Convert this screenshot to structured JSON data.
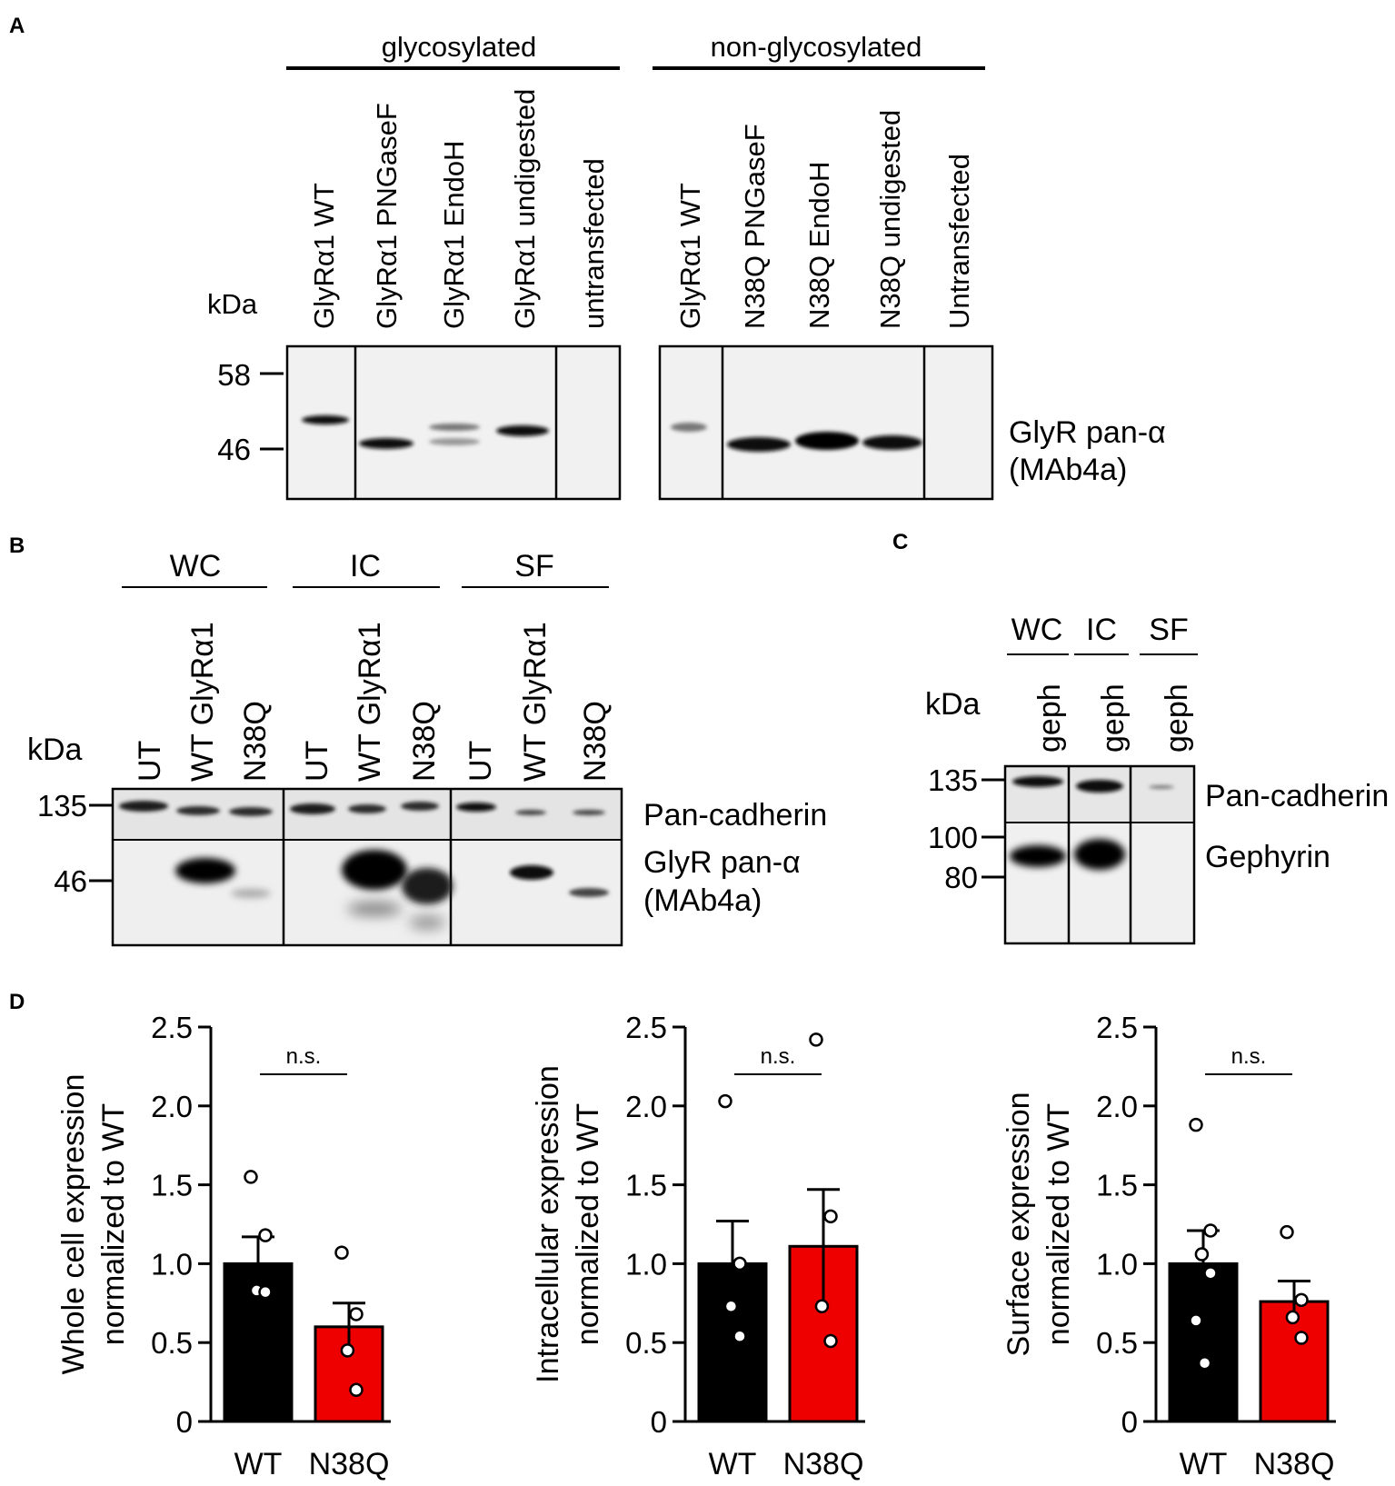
{
  "figure": {
    "panel_a": {
      "letter": "A",
      "group_left": "glycosylated",
      "group_right": "non-glycosylated",
      "kda_label": "kDa",
      "markers": [
        "58",
        "46"
      ],
      "lanes_left": [
        "GlyRα1 WT",
        "GlyRα1 PNGaseF",
        "GlyRα1 EndoH",
        "GlyRα1 undigested",
        "untransfected"
      ],
      "lanes_right": [
        "GlyRα1 WT",
        "N38Q PNGaseF",
        "N38Q EndoH",
        "N38Q undigested",
        "Untransfected"
      ],
      "blot_label_line1": "GlyR pan-α",
      "blot_label_line2": "(MAb4a)"
    },
    "panel_b": {
      "letter": "B",
      "groups": [
        "WC",
        "IC",
        "SF"
      ],
      "lanes": [
        "UT",
        "WT GlyRα1",
        "N38Q"
      ],
      "kda_label": "kDa",
      "markers": [
        "135",
        "46"
      ],
      "row_labels": [
        "Pan-cadherin",
        "GlyR pan-α",
        "(MAb4a)"
      ]
    },
    "panel_c": {
      "letter": "C",
      "groups": [
        "WC",
        "IC",
        "SF"
      ],
      "lane_label": "geph",
      "kda_label": "kDa",
      "markers": [
        "135",
        "100",
        "80"
      ],
      "row_labels": [
        "Pan-cadherin",
        "Gephyrin"
      ]
    },
    "panel_d": {
      "letter": "D",
      "significance": "n.s."
    }
  },
  "chart_data": [
    {
      "type": "bar",
      "ylabel_line1": "Whole cell expression",
      "ylabel_line2": "normalized to WT",
      "categories": [
        "WT",
        "N38Q"
      ],
      "values": [
        1.0,
        0.6
      ],
      "errors": [
        0.17,
        0.15
      ],
      "points": [
        [
          1.55,
          1.18,
          0.83,
          0.82
        ],
        [
          1.07,
          0.68,
          0.45,
          0.2
        ]
      ],
      "colors": [
        "#000000",
        "#ee0000"
      ],
      "ylim": [
        0,
        2.5
      ],
      "yticks": [
        "0",
        "0.5",
        "1.0",
        "1.5",
        "2.0",
        "2.5"
      ],
      "annotation": "n.s."
    },
    {
      "type": "bar",
      "ylabel_line1": "Intracellular expression",
      "ylabel_line2": "normalized to WT",
      "categories": [
        "WT",
        "N38Q"
      ],
      "values": [
        1.0,
        1.11
      ],
      "errors": [
        0.27,
        0.36
      ],
      "points": [
        [
          2.03,
          1.0,
          0.73,
          0.54
        ],
        [
          2.42,
          1.3,
          0.73,
          0.51
        ]
      ],
      "colors": [
        "#000000",
        "#ee0000"
      ],
      "ylim": [
        0,
        2.5
      ],
      "yticks": [
        "0",
        "0.5",
        "1.0",
        "1.5",
        "2.0",
        "2.5"
      ],
      "annotation": "n.s."
    },
    {
      "type": "bar",
      "ylabel_line1": "Surface expression",
      "ylabel_line2": "normalized to WT",
      "categories": [
        "WT",
        "N38Q"
      ],
      "values": [
        1.0,
        0.76
      ],
      "errors": [
        0.21,
        0.13
      ],
      "points": [
        [
          1.88,
          1.21,
          1.06,
          0.94,
          0.64,
          0.37
        ],
        [
          1.2,
          0.77,
          0.66,
          0.53
        ]
      ],
      "colors": [
        "#000000",
        "#ee0000"
      ],
      "ylim": [
        0,
        2.5
      ],
      "yticks": [
        "0",
        "0.5",
        "1.0",
        "1.5",
        "2.0",
        "2.5"
      ],
      "annotation": "n.s."
    }
  ]
}
